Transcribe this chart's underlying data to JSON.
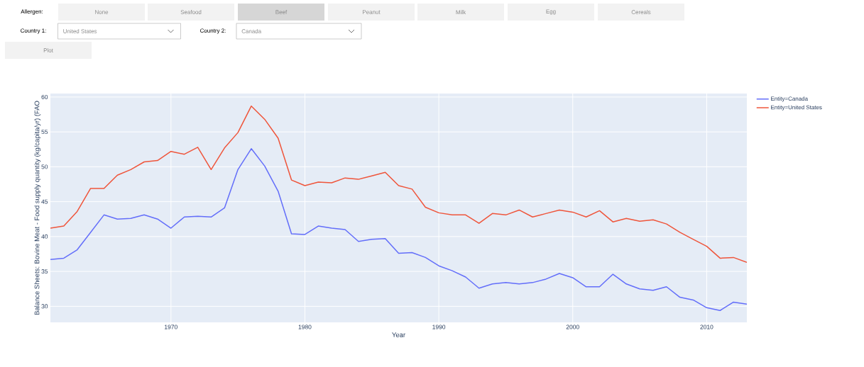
{
  "chart_data": {
    "type": "line",
    "xlabel": "Year",
    "ylabel": "Balance Sheets: Bovine Meat - Food supply quantity (kg/capita/yr) (FAO",
    "x": [
      1961,
      1962,
      1963,
      1964,
      1965,
      1966,
      1967,
      1968,
      1969,
      1970,
      1971,
      1972,
      1973,
      1974,
      1975,
      1976,
      1977,
      1978,
      1979,
      1980,
      1981,
      1982,
      1983,
      1984,
      1985,
      1986,
      1987,
      1988,
      1989,
      1990,
      1991,
      1992,
      1993,
      1994,
      1995,
      1996,
      1997,
      1998,
      1999,
      2000,
      2001,
      2002,
      2003,
      2004,
      2005,
      2006,
      2007,
      2008,
      2009,
      2010,
      2011,
      2012,
      2013
    ],
    "series": [
      {
        "name": "Entity=Canada",
        "color": "#636efa",
        "values": [
          36.7,
          36.9,
          38.1,
          40.6,
          43.1,
          42.5,
          42.6,
          43.1,
          42.5,
          41.2,
          42.8,
          42.9,
          42.8,
          44.1,
          49.6,
          52.6,
          50.1,
          46.5,
          40.4,
          40.3,
          41.5,
          41.2,
          41.0,
          39.3,
          39.6,
          39.7,
          37.6,
          37.7,
          37.0,
          35.8,
          35.1,
          34.2,
          32.6,
          33.2,
          33.4,
          33.2,
          33.4,
          33.9,
          34.7,
          34.1,
          32.8,
          32.8,
          34.6,
          33.2,
          32.5,
          32.3,
          32.8,
          31.3,
          30.9,
          29.8,
          29.4,
          30.6,
          30.3
        ]
      },
      {
        "name": "Entity=United States",
        "color": "#ef553b",
        "values": [
          41.2,
          41.5,
          43.6,
          46.9,
          46.9,
          48.8,
          49.6,
          50.7,
          50.9,
          52.2,
          51.8,
          52.8,
          49.6,
          52.7,
          54.9,
          58.7,
          56.8,
          54.1,
          48.1,
          47.3,
          47.8,
          47.7,
          48.4,
          48.2,
          48.7,
          49.2,
          47.3,
          46.8,
          44.2,
          43.4,
          43.1,
          43.1,
          41.9,
          43.3,
          43.1,
          43.8,
          42.8,
          43.3,
          43.8,
          43.5,
          42.8,
          43.7,
          42.1,
          42.6,
          42.2,
          42.4,
          41.8,
          40.6,
          39.6,
          38.6,
          36.9,
          37.0,
          36.3
        ]
      }
    ],
    "xlim": [
      1961,
      2013
    ],
    "ylim": [
      27.7,
      60.5
    ],
    "xticks": [
      1970,
      1980,
      1990,
      2000,
      2010
    ],
    "yticks": [
      30,
      35,
      40,
      45,
      50,
      55,
      60
    ],
    "grid": true,
    "legend": "top right",
    "marker": "none",
    "line_style": "solid",
    "annotations": [
      "Allergen:",
      "None",
      "Seafood",
      "Beef",
      "Peanut",
      "Milk",
      "Egg",
      "Cereals",
      "Country 1:",
      "United States",
      "Country 2:",
      "Canada",
      "Plot"
    ]
  }
}
